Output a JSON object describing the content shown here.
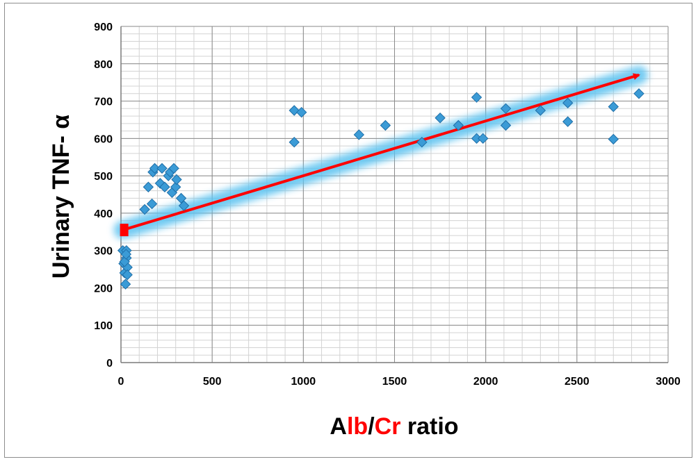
{
  "chart_data": {
    "type": "scatter",
    "title": "",
    "xlabel_parts": [
      {
        "text": "A",
        "color": "#000000"
      },
      {
        "text": "lb",
        "color": "#ff0000"
      },
      {
        "text": "/",
        "color": "#000000"
      },
      {
        "text": "Cr",
        "color": "#ff0000"
      },
      {
        "text": " ratio",
        "color": "#000000"
      }
    ],
    "ylabel": "Urinary TNF- α",
    "xlim": [
      0,
      3000
    ],
    "ylim": [
      0,
      900
    ],
    "x_ticks": [
      "0",
      "500",
      "1000",
      "1500",
      "2000",
      "2500",
      "3000"
    ],
    "y_ticks": [
      "0",
      "100",
      "200",
      "300",
      "400",
      "500",
      "600",
      "700",
      "800",
      "900"
    ],
    "grid": true,
    "minor_grid": true,
    "legend": "none",
    "marker": "diamond",
    "marker_color": "#3b9bd6",
    "trend_arrow": {
      "from": [
        10,
        355
      ],
      "to": [
        2840,
        770
      ],
      "color": "#ff0000",
      "glow_color": "#5cc2f0"
    },
    "points": [
      [
        10,
        300
      ],
      [
        15,
        265
      ],
      [
        20,
        240
      ],
      [
        25,
        210
      ],
      [
        30,
        300
      ],
      [
        30,
        280
      ],
      [
        35,
        255
      ],
      [
        35,
        235
      ],
      [
        20,
        270
      ],
      [
        28,
        290
      ],
      [
        130,
        410
      ],
      [
        150,
        470
      ],
      [
        170,
        425
      ],
      [
        175,
        510
      ],
      [
        185,
        520
      ],
      [
        215,
        480
      ],
      [
        225,
        520
      ],
      [
        240,
        470
      ],
      [
        260,
        500
      ],
      [
        270,
        510
      ],
      [
        280,
        455
      ],
      [
        290,
        520
      ],
      [
        300,
        470
      ],
      [
        305,
        490
      ],
      [
        330,
        440
      ],
      [
        345,
        420
      ],
      [
        950,
        675
      ],
      [
        950,
        590
      ],
      [
        990,
        670
      ],
      [
        1305,
        610
      ],
      [
        1450,
        635
      ],
      [
        1650,
        590
      ],
      [
        1750,
        655
      ],
      [
        1850,
        635
      ],
      [
        1950,
        710
      ],
      [
        1950,
        600
      ],
      [
        1985,
        600
      ],
      [
        2110,
        680
      ],
      [
        2110,
        635
      ],
      [
        2300,
        675
      ],
      [
        2450,
        695
      ],
      [
        2450,
        645
      ],
      [
        2700,
        685
      ],
      [
        2700,
        598
      ],
      [
        2840,
        720
      ]
    ]
  }
}
